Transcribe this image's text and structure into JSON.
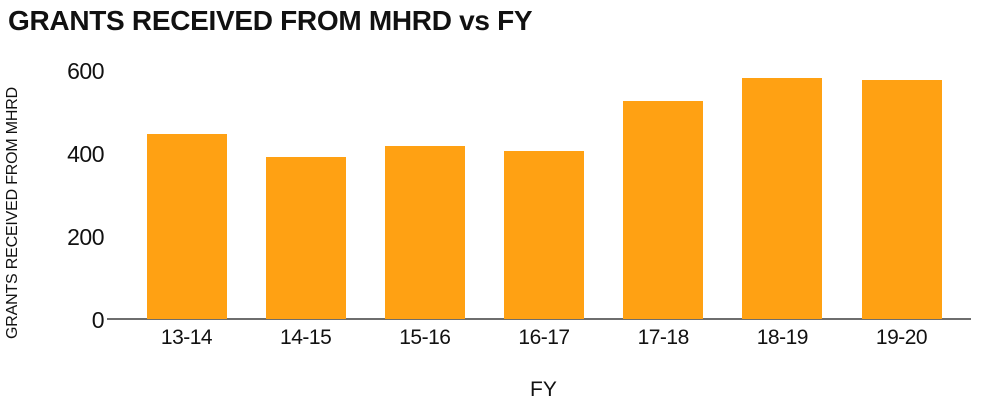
{
  "title": "GRANTS RECEIVED FROM MHRD vs FY",
  "colors": {
    "bar": "#FFA113",
    "axis_line": "#6E6E6E",
    "text": "#111111",
    "background": "#FFFFFF"
  },
  "chart_data": {
    "type": "bar",
    "title": "GRANTS RECEIVED FROM MHRD vs FY",
    "categories": [
      "13-14",
      "14-15",
      "15-16",
      "16-17",
      "17-18",
      "18-19",
      "19-20"
    ],
    "values": [
      445,
      390,
      415,
      405,
      525,
      580,
      575
    ],
    "xlabel": "FY",
    "ylabel": "GRANTS RECEIVED FROM MHRD",
    "yticks": [
      0,
      200,
      400,
      600
    ],
    "ylim": [
      0,
      600
    ],
    "grid": false,
    "legend_position": "none",
    "bar_color": "#FFA113"
  }
}
